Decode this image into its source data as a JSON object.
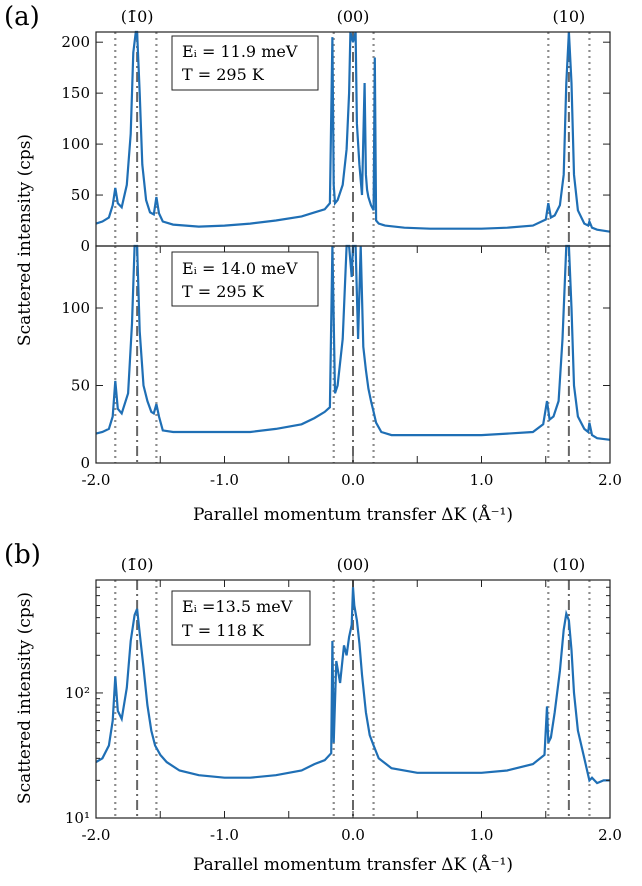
{
  "figure": {
    "panel_a_label": "(a)",
    "panel_b_label": "(b)",
    "shared_ylabel_a": "Scattered intensity (cps)",
    "ylabel_b": "Scattered intensity (cps)",
    "xlabel": "Parallel momentum transfer ΔK (Å⁻¹)",
    "peak_labels": [
      "(1̄0)",
      "(00)",
      "(10)"
    ]
  },
  "colors": {
    "series": "#1f6fb5",
    "reference_lines": "#8c8c8c",
    "axis": "#222222"
  },
  "chart_data": [
    {
      "type": "line",
      "panel": "a-top",
      "annotation": [
        "Eᵢ = 11.9 meV",
        "T = 295 K"
      ],
      "xlim": [
        -2.0,
        2.0
      ],
      "ylim": [
        0,
        210
      ],
      "yticks": [
        0,
        50,
        100,
        150,
        200
      ],
      "xticks": [],
      "dashdot_lines": [
        -1.68,
        0.0,
        1.68
      ],
      "dotted_lines": [
        -1.85,
        -1.53,
        -0.15,
        0.16,
        1.52,
        1.84
      ],
      "series": [
        {
          "x": [
            -2.0,
            -1.95,
            -1.9,
            -1.87,
            -1.85,
            -1.83,
            -1.8,
            -1.76,
            -1.73,
            -1.71,
            -1.69,
            -1.68,
            -1.66,
            -1.64,
            -1.61,
            -1.58,
            -1.55,
            -1.53,
            -1.51,
            -1.48,
            -1.4,
            -1.2,
            -1.0,
            -0.8,
            -0.6,
            -0.4,
            -0.3,
            -0.22,
            -0.18,
            -0.16,
            -0.15,
            -0.14,
            -0.12,
            -0.08,
            -0.05,
            -0.03,
            -0.02,
            0.0,
            0.02,
            0.03,
            0.05,
            0.07,
            0.09,
            0.1,
            0.11,
            0.12,
            0.14,
            0.16,
            0.17,
            0.18,
            0.2,
            0.25,
            0.4,
            0.6,
            0.8,
            1.0,
            1.2,
            1.4,
            1.5,
            1.52,
            1.54,
            1.57,
            1.61,
            1.64,
            1.66,
            1.68,
            1.7,
            1.72,
            1.75,
            1.8,
            1.83,
            1.84,
            1.86,
            1.9,
            2.0
          ],
          "y": [
            22,
            24,
            28,
            40,
            57,
            42,
            38,
            60,
            110,
            190,
            210,
            210,
            150,
            80,
            45,
            33,
            31,
            48,
            32,
            24,
            21,
            19,
            20,
            22,
            25,
            29,
            33,
            36,
            42,
            205,
            60,
            42,
            45,
            60,
            95,
            150,
            210,
            200,
            210,
            120,
            80,
            50,
            160,
            70,
            55,
            48,
            40,
            35,
            185,
            25,
            22,
            20,
            18,
            17,
            17,
            17,
            18,
            20,
            26,
            42,
            28,
            30,
            40,
            70,
            160,
            210,
            160,
            70,
            35,
            22,
            20,
            24,
            18,
            16,
            14
          ]
        }
      ]
    },
    {
      "type": "line",
      "panel": "a-bottom",
      "annotation": [
        "Eᵢ = 14.0 meV",
        "T = 295 K"
      ],
      "xlim": [
        -2.0,
        2.0
      ],
      "ylim": [
        0,
        140
      ],
      "yticks": [
        0,
        50,
        100
      ],
      "xticks": [
        "-2.0",
        "-1.0",
        "0.0",
        "1.0",
        "2.0"
      ],
      "dashdot_lines": [
        -1.68,
        0.0,
        1.68
      ],
      "dotted_lines": [
        -1.85,
        -1.53,
        -0.15,
        0.16,
        1.52,
        1.84
      ],
      "series": [
        {
          "x": [
            -2.0,
            -1.95,
            -1.9,
            -1.87,
            -1.85,
            -1.83,
            -1.8,
            -1.75,
            -1.72,
            -1.7,
            -1.68,
            -1.66,
            -1.63,
            -1.6,
            -1.57,
            -1.55,
            -1.53,
            -1.51,
            -1.48,
            -1.4,
            -1.2,
            -1.0,
            -0.8,
            -0.6,
            -0.4,
            -0.3,
            -0.22,
            -0.18,
            -0.16,
            -0.14,
            -0.12,
            -0.08,
            -0.05,
            -0.03,
            -0.01,
            0.0,
            0.02,
            0.04,
            0.06,
            0.08,
            0.1,
            0.12,
            0.14,
            0.16,
            0.18,
            0.22,
            0.3,
            0.5,
            0.8,
            1.0,
            1.2,
            1.4,
            1.48,
            1.51,
            1.53,
            1.56,
            1.6,
            1.63,
            1.66,
            1.68,
            1.7,
            1.72,
            1.75,
            1.8,
            1.83,
            1.84,
            1.86,
            1.9,
            2.0
          ],
          "y": [
            19,
            20,
            22,
            30,
            53,
            35,
            32,
            45,
            90,
            140,
            140,
            85,
            50,
            40,
            33,
            32,
            38,
            30,
            21,
            20,
            20,
            20,
            20,
            22,
            25,
            29,
            33,
            36,
            140,
            45,
            50,
            80,
            140,
            140,
            120,
            140,
            140,
            80,
            140,
            75,
            60,
            48,
            40,
            33,
            26,
            20,
            18,
            18,
            18,
            18,
            19,
            20,
            25,
            40,
            28,
            30,
            40,
            80,
            140,
            140,
            100,
            50,
            30,
            22,
            20,
            26,
            18,
            16,
            15
          ]
        }
      ]
    },
    {
      "type": "line",
      "panel": "b",
      "scale": "log",
      "annotation": [
        "Eᵢ =13.5 meV",
        "T = 118 K"
      ],
      "xlim": [
        -2.0,
        2.0
      ],
      "ylim": [
        10,
        800
      ],
      "yticks": [
        "10¹",
        "10²"
      ],
      "xticks": [
        "-2.0",
        "-1.0",
        "0.0",
        "1.0",
        "2.0"
      ],
      "dashdot_lines": [
        -1.68,
        0.0,
        1.68
      ],
      "dotted_lines": [
        -1.85,
        -1.53,
        -0.15,
        0.16,
        1.52,
        1.84
      ],
      "series": [
        {
          "x": [
            -2.0,
            -1.95,
            -1.9,
            -1.87,
            -1.85,
            -1.83,
            -1.8,
            -1.76,
            -1.73,
            -1.7,
            -1.68,
            -1.66,
            -1.63,
            -1.6,
            -1.57,
            -1.54,
            -1.5,
            -1.45,
            -1.35,
            -1.2,
            -1.0,
            -0.8,
            -0.6,
            -0.4,
            -0.3,
            -0.22,
            -0.17,
            -0.16,
            -0.15,
            -0.13,
            -0.1,
            -0.07,
            -0.05,
            -0.03,
            -0.01,
            0.0,
            0.01,
            0.03,
            0.05,
            0.07,
            0.1,
            0.13,
            0.16,
            0.2,
            0.3,
            0.5,
            0.8,
            1.0,
            1.2,
            1.4,
            1.49,
            1.51,
            1.52,
            1.54,
            1.57,
            1.61,
            1.64,
            1.66,
            1.68,
            1.7,
            1.72,
            1.75,
            1.8,
            1.83,
            1.84,
            1.86,
            1.9,
            1.95,
            2.0
          ],
          "y": [
            28,
            30,
            38,
            60,
            135,
            72,
            62,
            110,
            260,
            420,
            470,
            300,
            160,
            80,
            50,
            38,
            32,
            28,
            24,
            22,
            21,
            21,
            22,
            24,
            27,
            29,
            33,
            260,
            40,
            180,
            120,
            240,
            200,
            280,
            350,
            700,
            500,
            380,
            250,
            140,
            70,
            46,
            38,
            30,
            25,
            23,
            23,
            23,
            24,
            27,
            32,
            78,
            40,
            44,
            70,
            150,
            320,
            430,
            380,
            220,
            100,
            50,
            30,
            22,
            20,
            21,
            19,
            20,
            20
          ]
        }
      ]
    }
  ]
}
